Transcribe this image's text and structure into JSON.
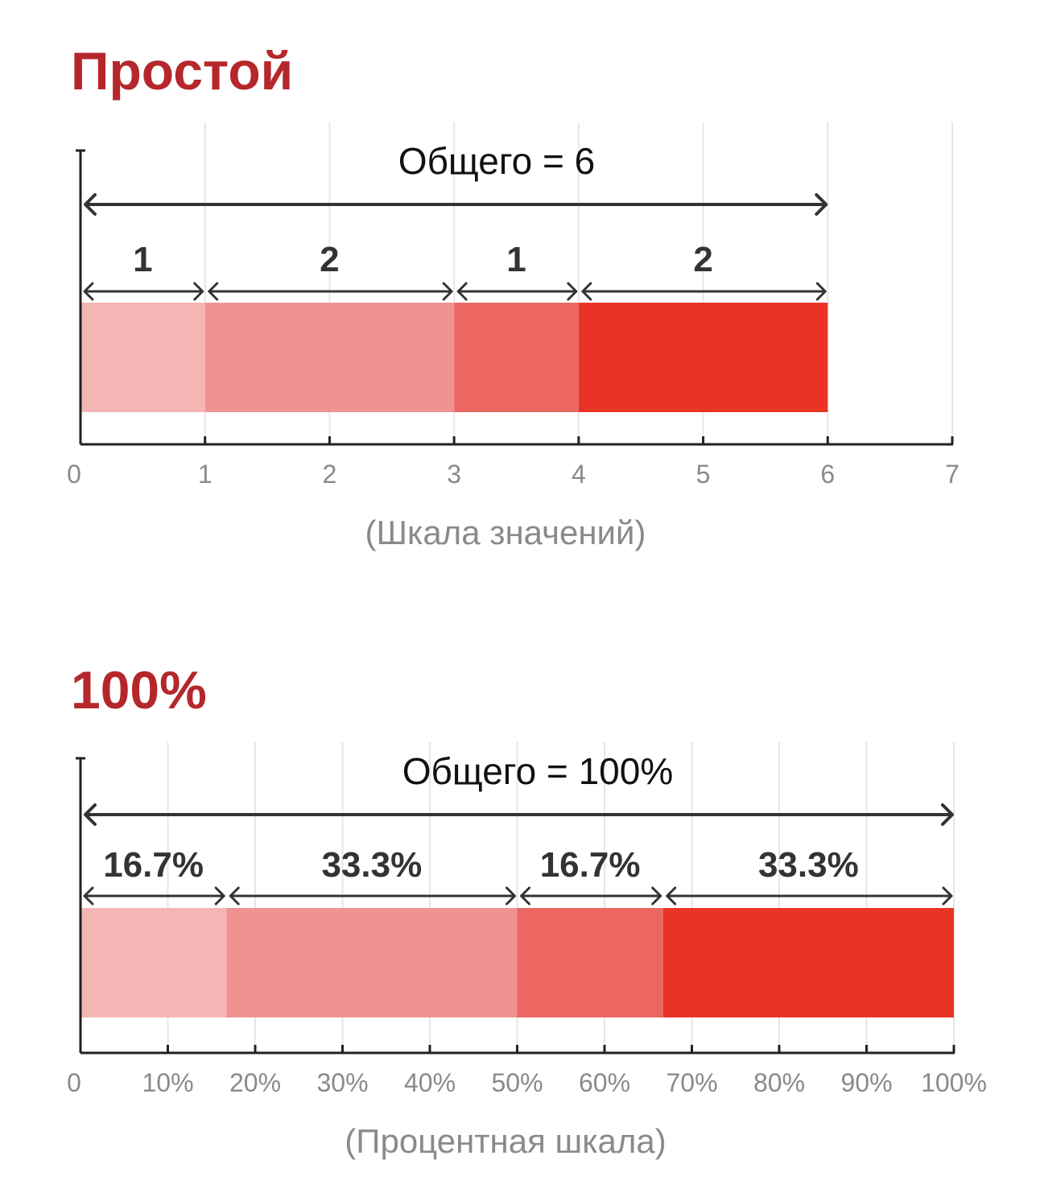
{
  "chart_data": [
    {
      "type": "bar",
      "title": "Простой",
      "total_label": "Общего = 6",
      "xlabel": "(Шкала значений)",
      "ylabel": "",
      "xlim": [
        0,
        7
      ],
      "grid": true,
      "orientation": "horizontal",
      "stacked": true,
      "ticks": [
        0,
        1,
        2,
        3,
        4,
        5,
        6,
        7
      ],
      "tick_labels": [
        "0",
        "1",
        "2",
        "3",
        "4",
        "5",
        "6",
        "7"
      ],
      "segments": [
        {
          "value": 1,
          "label": "1",
          "color": "#f4b6b5"
        },
        {
          "value": 2,
          "label": "2",
          "color": "#f0928f"
        },
        {
          "value": 1,
          "label": "1",
          "color": "#ec6762"
        },
        {
          "value": 2,
          "label": "2",
          "color": "#e93425"
        }
      ]
    },
    {
      "type": "bar",
      "title": "100%",
      "total_label": "Общего = 100%",
      "xlabel": "(Процентная шкала)",
      "ylabel": "",
      "xlim": [
        0,
        100
      ],
      "grid": true,
      "orientation": "horizontal",
      "stacked": true,
      "ticks": [
        0,
        10,
        20,
        30,
        40,
        50,
        60,
        70,
        80,
        90,
        100
      ],
      "tick_labels": [
        "0",
        "10%",
        "20%",
        "30%",
        "40%",
        "50%",
        "60%",
        "70%",
        "80%",
        "90%",
        "100%"
      ],
      "segments": [
        {
          "value": 16.7,
          "label": "16.7%",
          "color": "#f4b6b5"
        },
        {
          "value": 33.3,
          "label": "33.3%",
          "color": "#f0928f"
        },
        {
          "value": 16.7,
          "label": "16.7%",
          "color": "#ec6762"
        },
        {
          "value": 33.3,
          "label": "33.3%",
          "color": "#e93425"
        }
      ]
    }
  ]
}
